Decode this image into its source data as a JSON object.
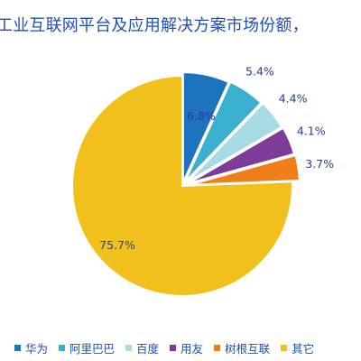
{
  "chart_data": {
    "type": "pie",
    "title": "工业互联网平台及应用解决方案市场份额，",
    "start_angle_deg": 0,
    "direction": "clockwise",
    "legend_position": "bottom",
    "slices": [
      {
        "name": "华为",
        "value": 6.8,
        "label": "6.8%",
        "color": "#1e73be"
      },
      {
        "name": "阿里巴巴",
        "value": 5.4,
        "label": "5.4%",
        "color": "#3ab0cc"
      },
      {
        "name": "百度",
        "value": 4.4,
        "label": "4.4%",
        "color": "#a6dbe6"
      },
      {
        "name": "用友",
        "value": 4.1,
        "label": "4.1%",
        "color": "#7d3c98"
      },
      {
        "name": "树根互联",
        "value": 3.7,
        "label": "3.7%",
        "color": "#f07f1a"
      },
      {
        "name": "其它",
        "value": 75.7,
        "label": "75.7%",
        "color": "#f2c01d"
      }
    ]
  }
}
